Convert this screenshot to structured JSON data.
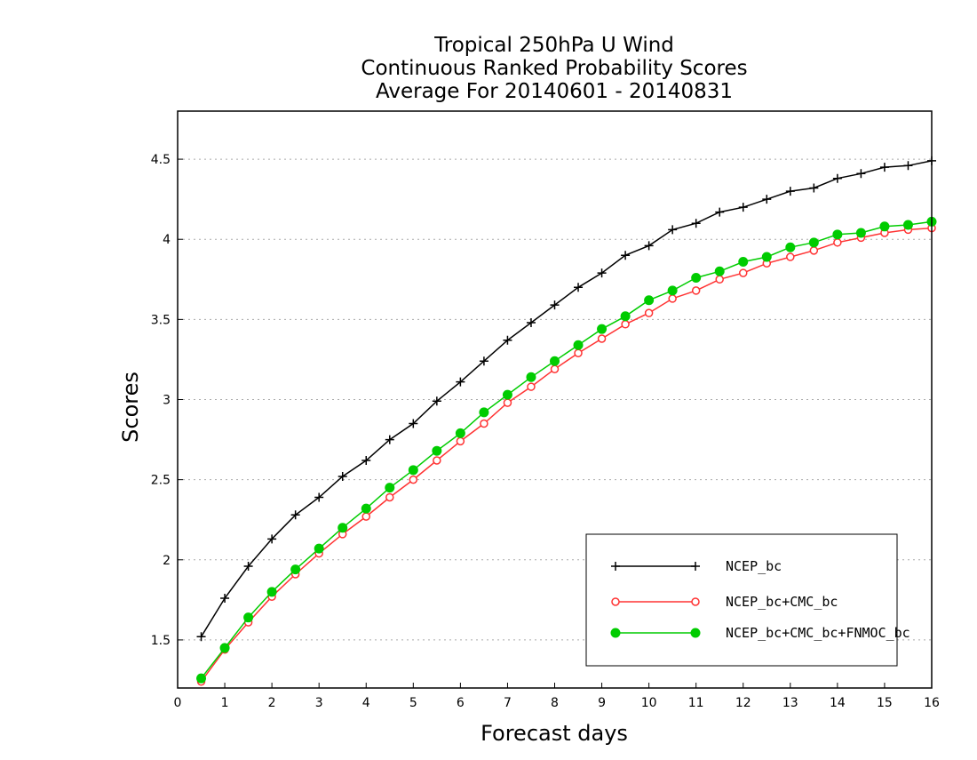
{
  "chart_data": {
    "type": "line",
    "title_lines": [
      "Tropical 250hPa U Wind",
      "Continuous Ranked Probability Scores",
      "Average For 20140601 - 20140831"
    ],
    "xlabel": "Forecast days",
    "ylabel": "Scores",
    "xlim": [
      0,
      16
    ],
    "ylim": [
      1.2,
      4.8
    ],
    "x_ticks": [
      "0",
      "1",
      "2",
      "3",
      "4",
      "5",
      "6",
      "7",
      "8",
      "9",
      "10",
      "11",
      "12",
      "13",
      "14",
      "15",
      "16"
    ],
    "y_ticks": [
      {
        "value": 1.5,
        "label": "1.5"
      },
      {
        "value": 2.0,
        "label": "2"
      },
      {
        "value": 2.5,
        "label": "2.5"
      },
      {
        "value": 3.0,
        "label": "3"
      },
      {
        "value": 3.5,
        "label": "3.5"
      },
      {
        "value": 4.0,
        "label": "4"
      },
      {
        "value": 4.5,
        "label": "4.5"
      }
    ],
    "grid": "horizontal-dotted",
    "legend_position": "bottom-right",
    "x": [
      0.5,
      1,
      1.5,
      2,
      2.5,
      3,
      3.5,
      4,
      4.5,
      5,
      5.5,
      6,
      6.5,
      7,
      7.5,
      8,
      8.5,
      9,
      9.5,
      10,
      10.5,
      11,
      11.5,
      12,
      12.5,
      13,
      13.5,
      14,
      14.5,
      15,
      15.5,
      16
    ],
    "series": [
      {
        "name": "NCEP_bc",
        "color": "#000000",
        "marker": "plus",
        "values": [
          1.52,
          1.76,
          1.96,
          2.13,
          2.28,
          2.39,
          2.52,
          2.62,
          2.75,
          2.85,
          2.99,
          3.11,
          3.24,
          3.37,
          3.48,
          3.59,
          3.7,
          3.79,
          3.9,
          3.96,
          4.06,
          4.1,
          4.17,
          4.2,
          4.25,
          4.3,
          4.32,
          4.38,
          4.41,
          4.45,
          4.46,
          4.49
        ]
      },
      {
        "name": "NCEP_bc+CMC_bc",
        "color": "#ff3333",
        "marker": "open-circle",
        "values": [
          1.24,
          1.44,
          1.61,
          1.77,
          1.91,
          2.04,
          2.16,
          2.27,
          2.39,
          2.5,
          2.62,
          2.74,
          2.85,
          2.98,
          3.08,
          3.19,
          3.29,
          3.38,
          3.47,
          3.54,
          3.63,
          3.68,
          3.75,
          3.79,
          3.85,
          3.89,
          3.93,
          3.98,
          4.01,
          4.04,
          4.06,
          4.07
        ]
      },
      {
        "name": "NCEP_bc+CMC_bc+FNMOC_bc",
        "color": "#00cc00",
        "marker": "filled-circle",
        "values": [
          1.26,
          1.45,
          1.64,
          1.8,
          1.94,
          2.07,
          2.2,
          2.32,
          2.45,
          2.56,
          2.68,
          2.79,
          2.92,
          3.03,
          3.14,
          3.24,
          3.34,
          3.44,
          3.52,
          3.62,
          3.68,
          3.76,
          3.8,
          3.86,
          3.89,
          3.95,
          3.98,
          4.03,
          4.04,
          4.08,
          4.09,
          4.11
        ]
      }
    ]
  }
}
